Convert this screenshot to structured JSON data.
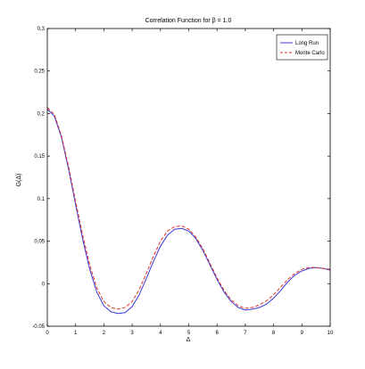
{
  "chart_data": {
    "type": "line",
    "title": "Correlation Function for β = 1.0",
    "xlabel": "Δ",
    "ylabel": "G(Δ)",
    "xlim": [
      0,
      10
    ],
    "ylim": [
      -0.05,
      0.3
    ],
    "grid": false,
    "legend_position": "top-right",
    "x_ticks": [
      0,
      1,
      2,
      3,
      4,
      5,
      6,
      7,
      8,
      9,
      10
    ],
    "y_ticks": [
      -0.05,
      0,
      0.05,
      0.1,
      0.15,
      0.2,
      0.25,
      0.3
    ],
    "x_tick_labels": [
      "0",
      "1",
      "2",
      "3",
      "4",
      "5",
      "6",
      "7",
      "8",
      "9",
      "10"
    ],
    "y_tick_labels": [
      "-0.05",
      "0",
      "0.05",
      "0.1",
      "0.15",
      "0.2",
      "0.25",
      "0.3"
    ],
    "series": [
      {
        "name": "Long Run",
        "color": "#3b3bd6",
        "style": "solid",
        "x": [
          0,
          0.25,
          0.5,
          0.75,
          1.0,
          1.25,
          1.5,
          1.75,
          2.0,
          2.25,
          2.5,
          2.75,
          3.0,
          3.25,
          3.5,
          3.75,
          4.0,
          4.25,
          4.5,
          4.75,
          5.0,
          5.25,
          5.5,
          5.75,
          6.0,
          6.25,
          6.5,
          6.75,
          7.0,
          7.25,
          7.5,
          7.75,
          8.0,
          8.25,
          8.5,
          8.75,
          9.0,
          9.25,
          9.5,
          9.75,
          10.0
        ],
        "values": [
          0.205,
          0.197,
          0.172,
          0.135,
          0.093,
          0.052,
          0.017,
          -0.01,
          -0.026,
          -0.033,
          -0.035,
          -0.034,
          -0.027,
          -0.013,
          0.006,
          0.026,
          0.044,
          0.057,
          0.064,
          0.065,
          0.062,
          0.053,
          0.039,
          0.022,
          0.005,
          -0.01,
          -0.021,
          -0.028,
          -0.031,
          -0.03,
          -0.028,
          -0.024,
          -0.017,
          -0.008,
          0.002,
          0.01,
          0.015,
          0.018,
          0.019,
          0.018,
          0.016
        ]
      },
      {
        "name": "Monte Carlo",
        "color": "#e03030",
        "style": "dashed",
        "x": [
          0,
          0.25,
          0.5,
          0.75,
          1.0,
          1.25,
          1.5,
          1.75,
          2.0,
          2.25,
          2.5,
          2.75,
          3.0,
          3.25,
          3.5,
          3.75,
          4.0,
          4.25,
          4.5,
          4.75,
          5.0,
          5.25,
          5.5,
          5.75,
          6.0,
          6.25,
          6.5,
          6.75,
          7.0,
          7.25,
          7.5,
          7.75,
          8.0,
          8.25,
          8.5,
          8.75,
          9.0,
          9.25,
          9.5,
          9.75,
          10.0
        ],
        "values": [
          0.207,
          0.199,
          0.174,
          0.138,
          0.097,
          0.057,
          0.022,
          -0.005,
          -0.021,
          -0.028,
          -0.03,
          -0.028,
          -0.021,
          -0.007,
          0.012,
          0.032,
          0.05,
          0.062,
          0.067,
          0.068,
          0.064,
          0.055,
          0.041,
          0.024,
          0.007,
          -0.008,
          -0.019,
          -0.026,
          -0.029,
          -0.028,
          -0.025,
          -0.02,
          -0.013,
          -0.004,
          0.005,
          0.012,
          0.017,
          0.019,
          0.019,
          0.018,
          0.017
        ]
      }
    ]
  }
}
